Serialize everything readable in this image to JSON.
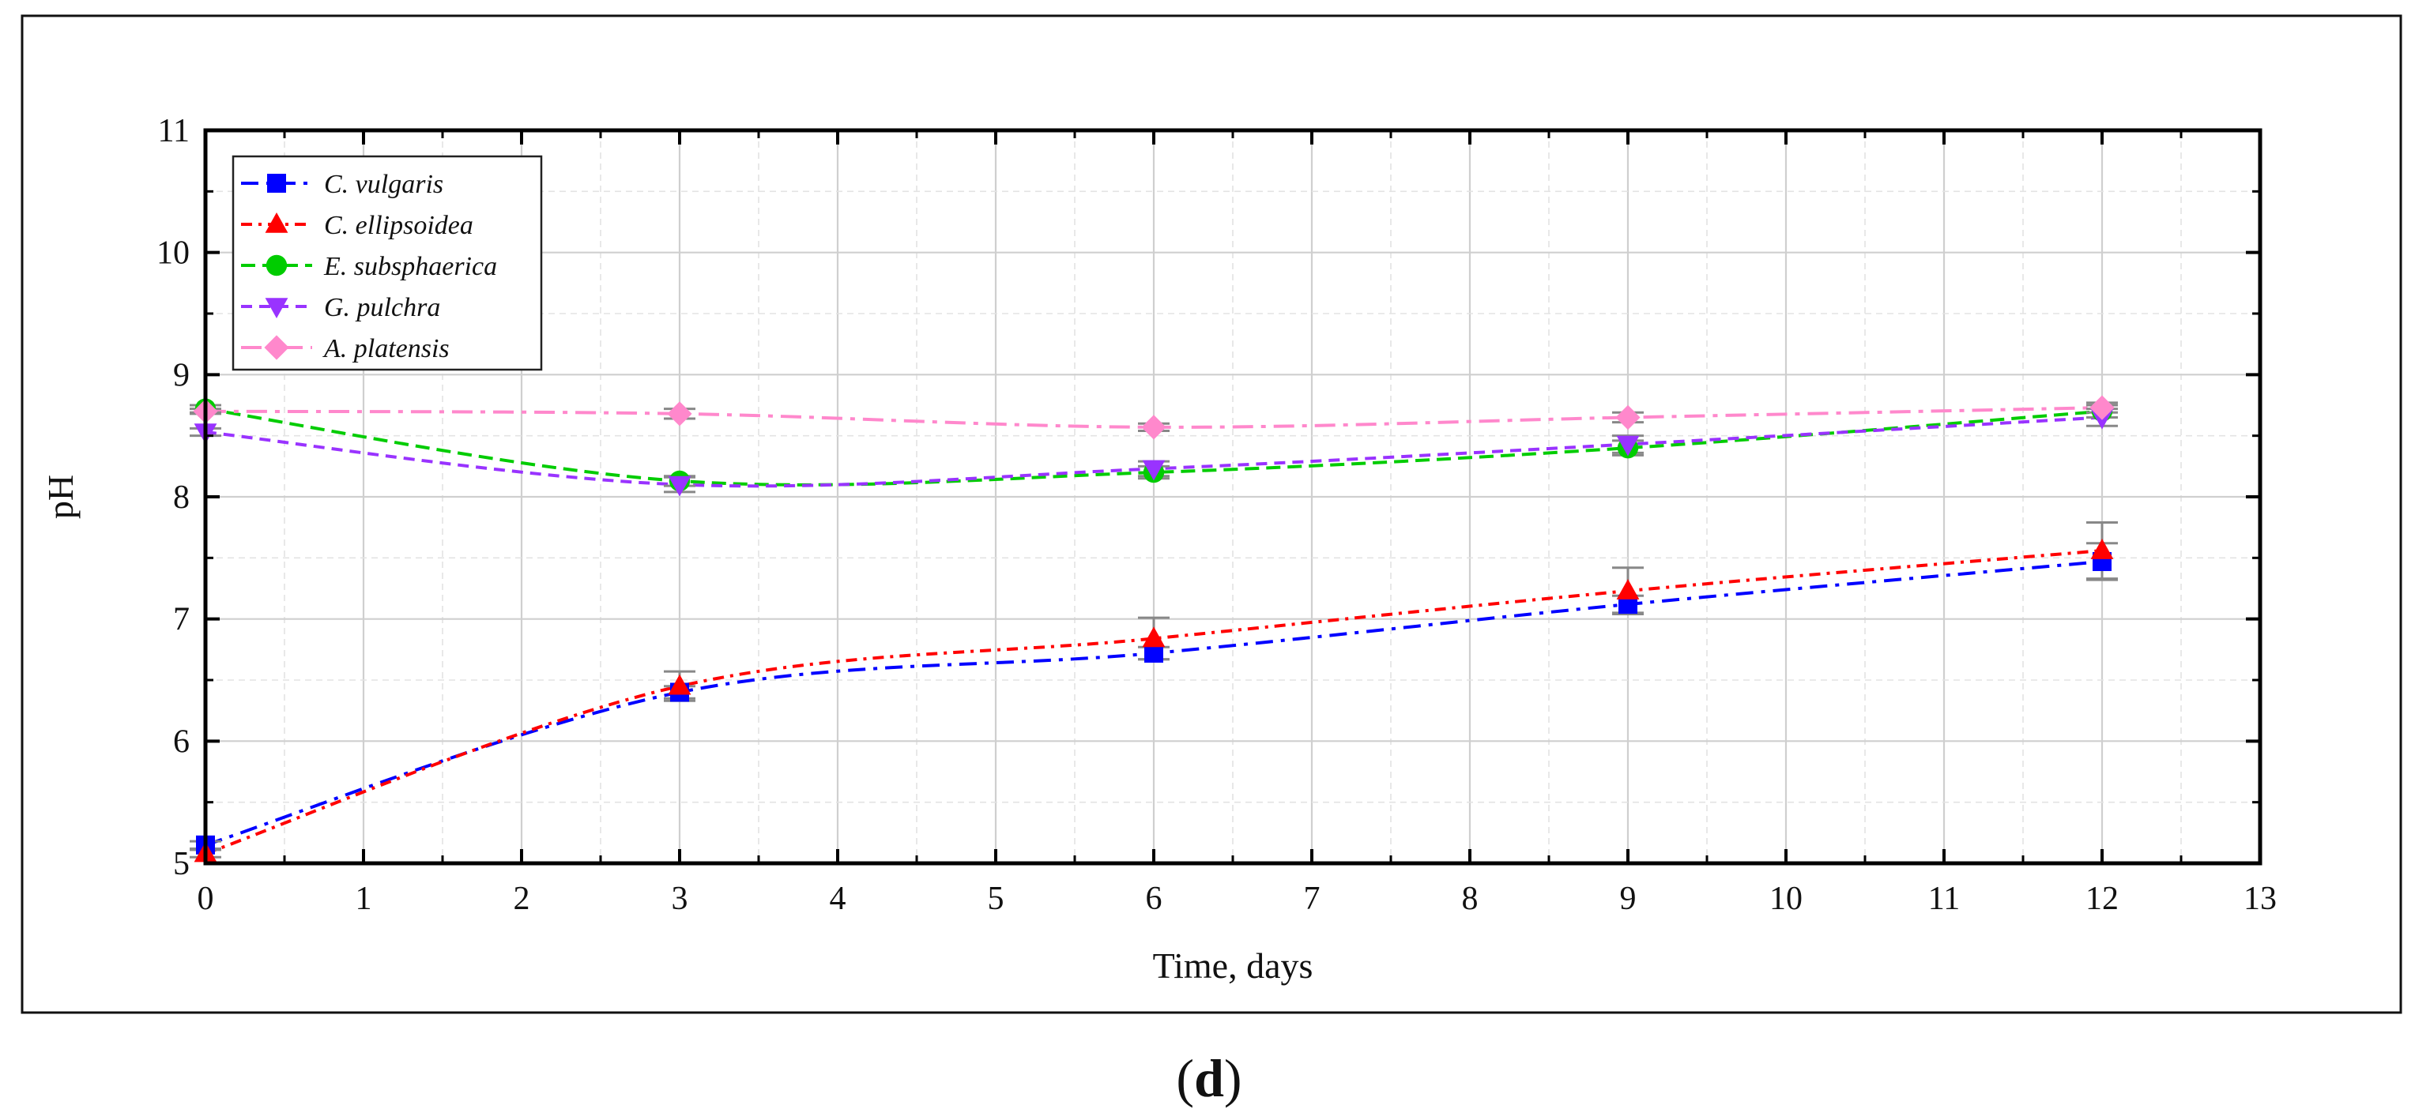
{
  "chart_data": {
    "type": "line",
    "title": "",
    "xlabel": "Time, days",
    "ylabel": "pH",
    "xlim": [
      0,
      13
    ],
    "ylim": [
      5,
      11
    ],
    "x_ticks": [
      0,
      1,
      2,
      3,
      4,
      5,
      6,
      7,
      8,
      9,
      10,
      11,
      12,
      13
    ],
    "y_ticks": [
      5,
      6,
      7,
      8,
      9,
      10,
      11
    ],
    "grid": true,
    "legend_position": "top-left",
    "panel_label": "d",
    "x": [
      0,
      3,
      6,
      9,
      12
    ],
    "series": [
      {
        "name": "C. vulgaris",
        "color": "#0000ff",
        "marker": "square",
        "values": [
          5.15,
          6.4,
          6.72,
          7.12,
          7.47
        ],
        "errors": [
          0.03,
          0.05,
          0.05,
          0.07,
          0.15
        ]
      },
      {
        "name": "C. ellipsoidea",
        "color": "#ff0000",
        "marker": "triangle-up",
        "values": [
          5.08,
          6.45,
          6.84,
          7.23,
          7.56
        ],
        "errors": [
          0.03,
          0.12,
          0.17,
          0.19,
          0.23
        ]
      },
      {
        "name": "E. subsphaerica",
        "color": "#00cc00",
        "marker": "circle",
        "values": [
          8.72,
          8.13,
          8.2,
          8.4,
          8.7
        ],
        "errors": [
          0.03,
          0.04,
          0.05,
          0.06,
          0.05
        ]
      },
      {
        "name": "G. pulchra",
        "color": "#9933ff",
        "marker": "triangle-down",
        "values": [
          8.53,
          8.1,
          8.23,
          8.43,
          8.65
        ],
        "errors": [
          0.03,
          0.06,
          0.06,
          0.07,
          0.07
        ]
      },
      {
        "name": "A. platensis",
        "color": "#ff88cc",
        "marker": "diamond",
        "values": [
          8.7,
          8.68,
          8.57,
          8.65,
          8.73
        ],
        "errors": [
          0.02,
          0.04,
          0.03,
          0.04,
          0.04
        ]
      }
    ]
  }
}
